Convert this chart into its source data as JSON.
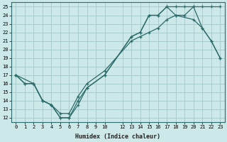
{
  "xlabel": "Humidex (Indice chaleur)",
  "bg_color": "#cce8e8",
  "grid_color": "#aacccc",
  "line_color": "#2d6b6b",
  "xlim": [
    -0.5,
    23.5
  ],
  "ylim": [
    11.5,
    25.5
  ],
  "xticks": [
    0,
    1,
    2,
    3,
    4,
    5,
    6,
    7,
    8,
    9,
    10,
    12,
    13,
    14,
    15,
    16,
    17,
    18,
    19,
    20,
    21,
    22,
    23
  ],
  "yticks": [
    12,
    13,
    14,
    15,
    16,
    17,
    18,
    19,
    20,
    21,
    22,
    23,
    24,
    25
  ],
  "line1_x": [
    0,
    1,
    2,
    3,
    4,
    5,
    6,
    7,
    8,
    10,
    13,
    14,
    15,
    16,
    17,
    18,
    20,
    21,
    22,
    23
  ],
  "line1_y": [
    17,
    16,
    16,
    14,
    13.5,
    12,
    12,
    13.5,
    15.5,
    17,
    21.5,
    22,
    24,
    24,
    25,
    24,
    23.5,
    22.5,
    21,
    19
  ],
  "line2_x": [
    0,
    1,
    2,
    3,
    4,
    5,
    6,
    7,
    8,
    10,
    13,
    14,
    15,
    16,
    17,
    18,
    19,
    20,
    21,
    22,
    23
  ],
  "line2_y": [
    17,
    16,
    16,
    14,
    13.5,
    12,
    12,
    14,
    15.5,
    17,
    21.5,
    22,
    24,
    24,
    25,
    25,
    25,
    25,
    22.5,
    21,
    19
  ],
  "line3_x": [
    0,
    2,
    3,
    4,
    5,
    6,
    7,
    8,
    10,
    13,
    14,
    15,
    16,
    17,
    18,
    19,
    20,
    21,
    22,
    23
  ],
  "line3_y": [
    17,
    16,
    14,
    13.5,
    12.5,
    12.5,
    14.5,
    16,
    17.5,
    21,
    21.5,
    22,
    22.5,
    23.5,
    24,
    24,
    25,
    25,
    25,
    25
  ]
}
